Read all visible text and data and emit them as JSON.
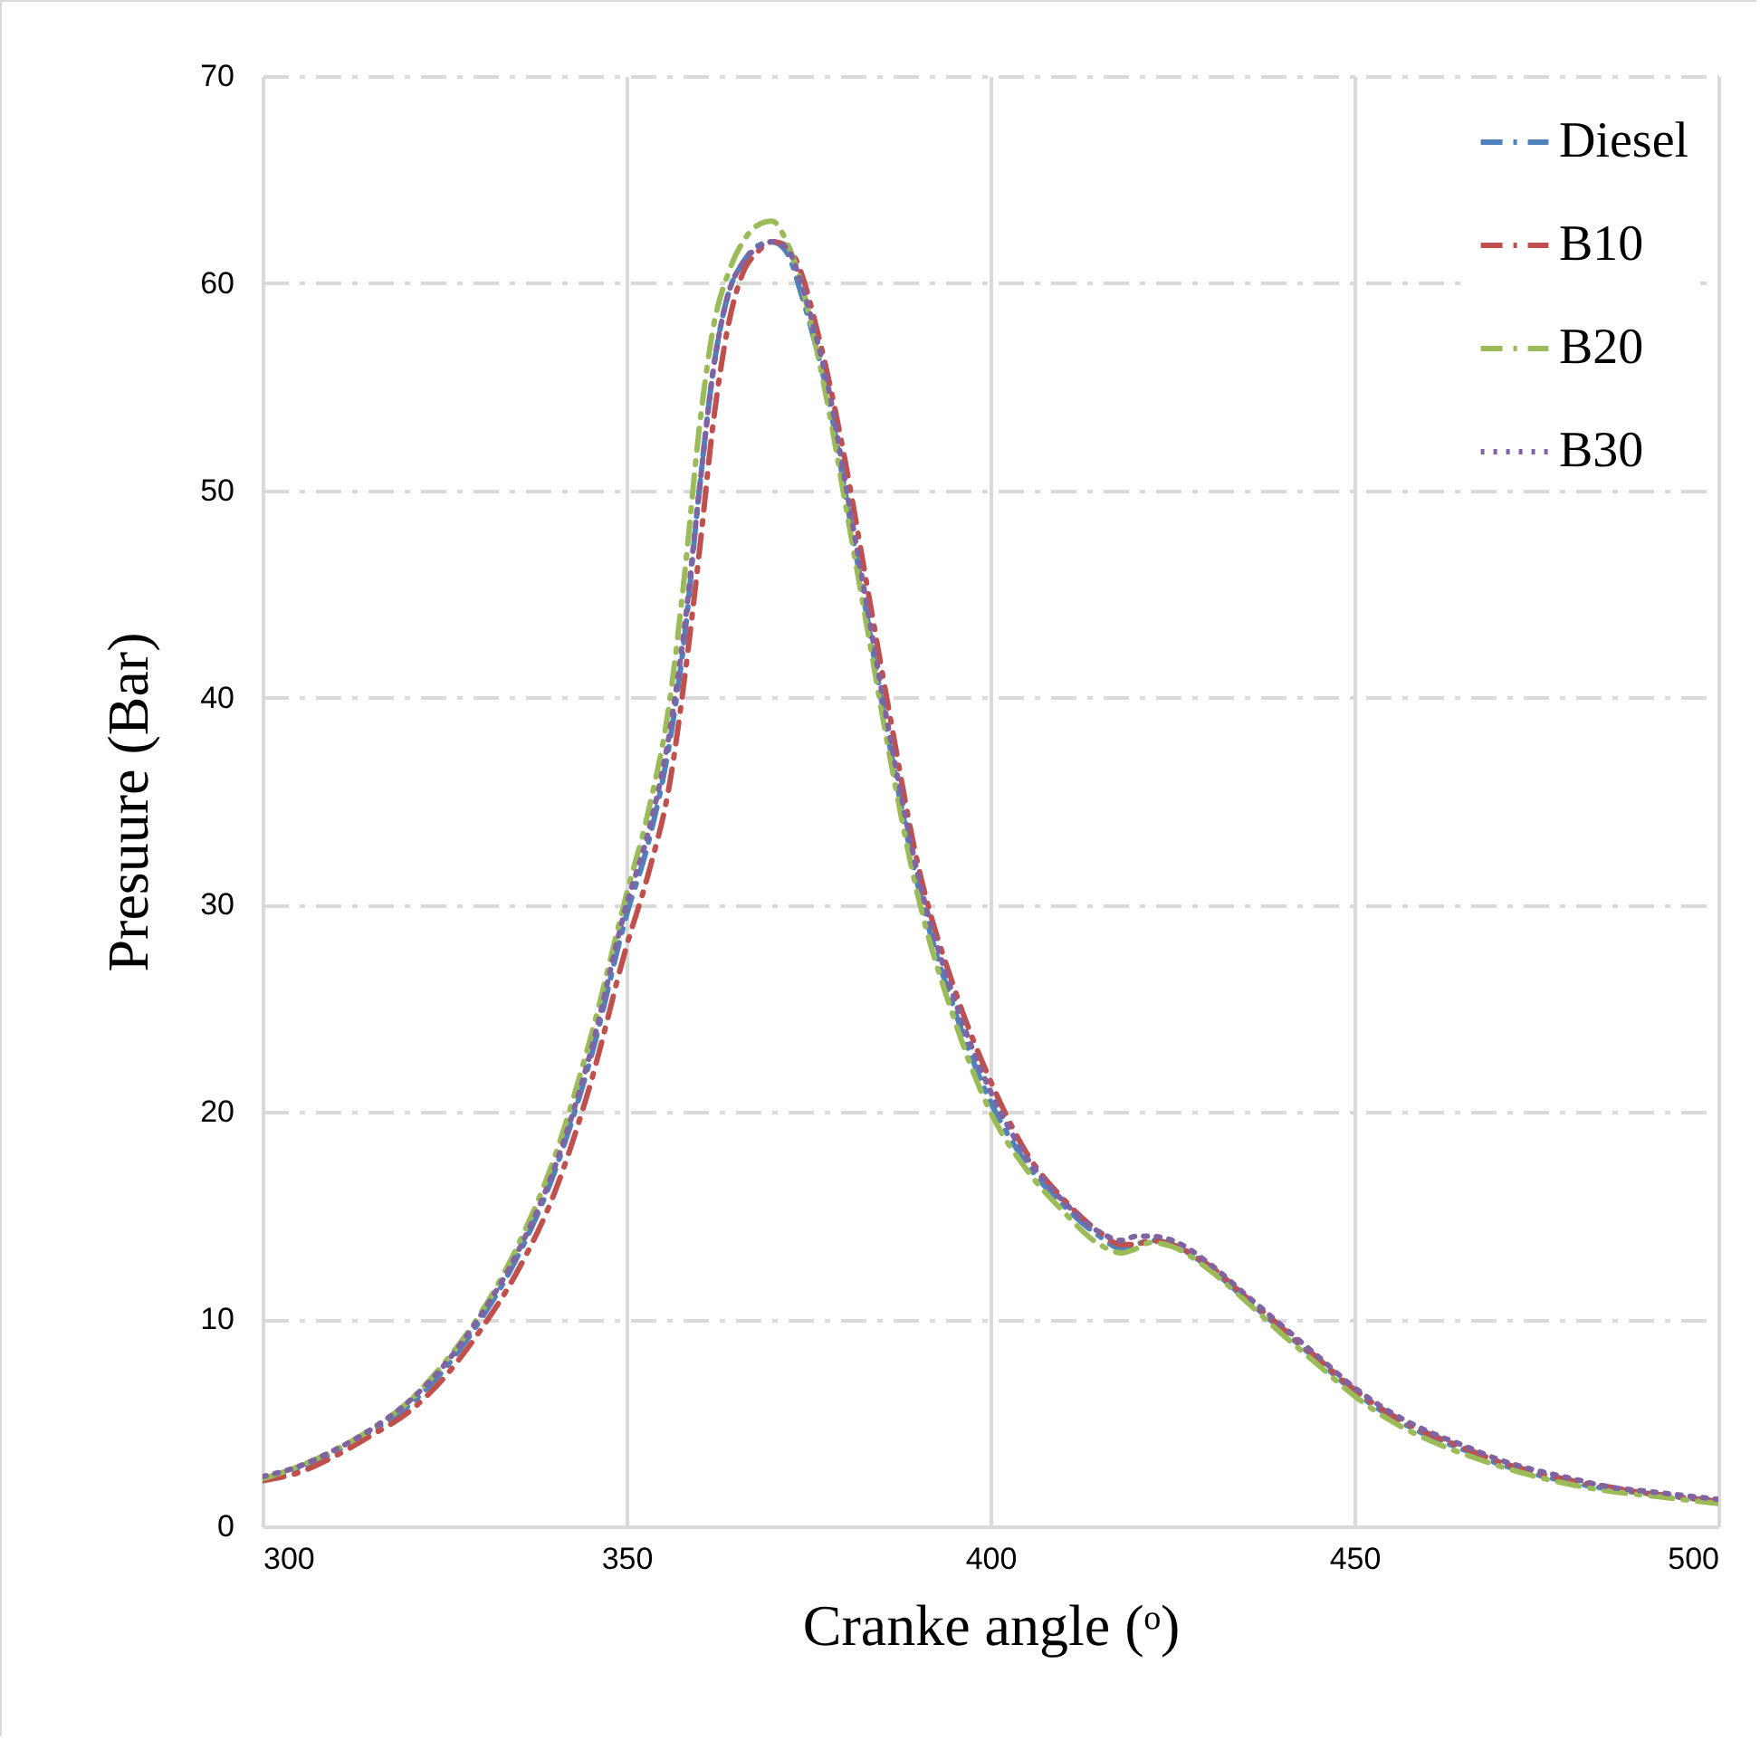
{
  "chart_data": {
    "type": "line",
    "xlabel": "Cranke angle (ᵒ)",
    "ylabel": "Presuure  (Bar)",
    "xlim": [
      300,
      500
    ],
    "xticks": [
      300,
      350,
      400,
      450,
      500
    ],
    "ylim": [
      0,
      70
    ],
    "yticks": [
      0,
      10,
      20,
      30,
      40,
      50,
      60,
      70
    ],
    "grid": true,
    "legend": "top right",
    "x": [
      300,
      305,
      310,
      315,
      320,
      325,
      330,
      335,
      340,
      345,
      350,
      353,
      356,
      358,
      360,
      362,
      364,
      366,
      368,
      370,
      372,
      374,
      376,
      378,
      380,
      383,
      386,
      390,
      395,
      400,
      405,
      410,
      415,
      418,
      420,
      422,
      425,
      430,
      435,
      440,
      445,
      450,
      455,
      460,
      465,
      470,
      475,
      480,
      485,
      490,
      495,
      500
    ],
    "series": [
      {
        "name": "Diesel",
        "color": "#4f81bd",
        "line_style": "dashed",
        "values": [
          2.3,
          2.8,
          3.6,
          4.6,
          5.8,
          7.6,
          10.0,
          13.0,
          17.0,
          22.5,
          29.5,
          33,
          38,
          43,
          50,
          56,
          59.5,
          61,
          61.8,
          62,
          61.5,
          59.5,
          57,
          54,
          50,
          44,
          38,
          31,
          25,
          20.5,
          17.5,
          15.5,
          14,
          13.4,
          13.6,
          13.8,
          13.6,
          12.5,
          11,
          9.5,
          8,
          6.5,
          5.3,
          4.4,
          3.7,
          3.0,
          2.5,
          2.1,
          1.8,
          1.6,
          1.4,
          1.2
        ]
      },
      {
        "name": "B10",
        "color": "#c0504d",
        "line_style": "dashed",
        "values": [
          2.2,
          2.6,
          3.4,
          4.4,
          5.5,
          7.2,
          9.5,
          12.3,
          16.0,
          21.3,
          28,
          31.5,
          36,
          41,
          47,
          53.5,
          58,
          60.5,
          61.5,
          62,
          61.8,
          60.5,
          58,
          55,
          51.5,
          45.5,
          39.5,
          32,
          26,
          21.5,
          18,
          15.8,
          14.2,
          13.6,
          13.6,
          13.8,
          13.6,
          12.6,
          11.1,
          9.6,
          8.1,
          6.6,
          5.4,
          4.5,
          3.8,
          3.1,
          2.6,
          2.2,
          1.9,
          1.6,
          1.4,
          1.2
        ]
      },
      {
        "name": "B20",
        "color": "#9bbb59",
        "line_style": "dashed",
        "values": [
          2.3,
          2.9,
          3.7,
          4.7,
          6.0,
          7.9,
          10.3,
          13.5,
          17.7,
          23.5,
          30.5,
          34.5,
          40,
          46,
          53,
          58,
          60.5,
          62,
          62.8,
          63,
          62,
          60,
          57,
          53.5,
          49.5,
          43.5,
          37.5,
          30.5,
          24.5,
          20,
          17.2,
          15.2,
          13.6,
          13.2,
          13.4,
          13.7,
          13.5,
          12.4,
          10.9,
          9.3,
          7.8,
          6.3,
          5.1,
          4.2,
          3.5,
          2.9,
          2.4,
          2.0,
          1.7,
          1.5,
          1.3,
          1.1
        ]
      },
      {
        "name": "B30",
        "color": "#8064a2",
        "line_style": "dotted",
        "values": [
          2.4,
          2.9,
          3.7,
          4.7,
          6.0,
          7.8,
          10.2,
          13.2,
          17.2,
          22.8,
          30,
          33.5,
          38.5,
          43.5,
          50,
          56,
          59.5,
          61,
          61.7,
          62,
          61.7,
          60,
          57.5,
          54.5,
          50.5,
          44.5,
          38.5,
          31.5,
          25.5,
          21,
          17.8,
          15.7,
          14.2,
          13.8,
          14,
          14,
          13.8,
          12.7,
          11.2,
          9.7,
          8.2,
          6.7,
          5.5,
          4.6,
          3.9,
          3.2,
          2.7,
          2.3,
          1.9,
          1.7,
          1.5,
          1.3
        ]
      }
    ]
  }
}
